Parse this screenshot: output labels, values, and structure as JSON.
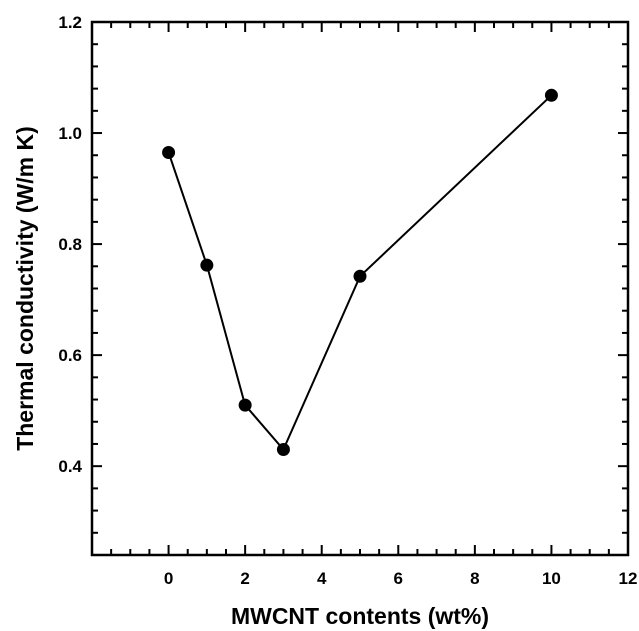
{
  "chart_data": {
    "type": "line",
    "title": "",
    "xlabel": "MWCNT contents (wt%)",
    "ylabel": "Thermal conductivity (W/m K)",
    "xlim": [
      -2,
      12
    ],
    "ylim": [
      0.24,
      1.2
    ],
    "x_ticks": [
      0,
      2,
      4,
      6,
      8,
      10,
      12
    ],
    "y_ticks": [
      0.4,
      0.6,
      0.8,
      1.0,
      1.2
    ],
    "x_tick_labels": [
      "0",
      "2",
      "4",
      "6",
      "8",
      "10",
      "12"
    ],
    "y_tick_labels": [
      "0.4",
      "0.6",
      "0.8",
      "1.0",
      "1.2"
    ],
    "x_minor_step": 0.5,
    "y_minor_step": 0.04,
    "grid": false,
    "legend": "none",
    "marker": "filled-circle",
    "series": [
      {
        "x": [
          0,
          1,
          2,
          3,
          5,
          10
        ],
        "y": [
          0.965,
          0.762,
          0.51,
          0.43,
          0.742,
          1.068
        ]
      }
    ],
    "colors": {
      "line": "#000000",
      "marker": "#000000",
      "frame": "#000000"
    }
  }
}
